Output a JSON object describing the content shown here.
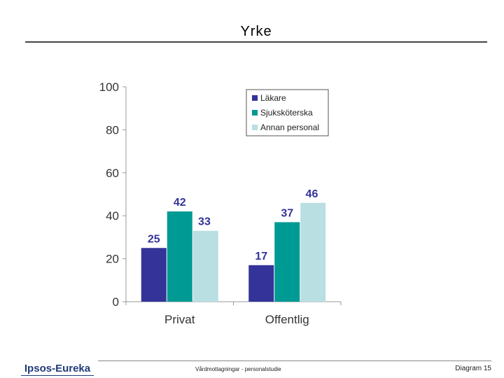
{
  "header": {
    "title": "Yrke"
  },
  "footer": {
    "logo": "Ipsos-Eureka",
    "center": "Vårdmottagningar - personalstudie",
    "right": "Diagram 15"
  },
  "colors": {
    "Läkare": "#333399",
    "Sjuksköterska": "#009a94",
    "Annan personal": "#b9dfe3"
  },
  "chart_data": {
    "type": "bar",
    "categories": [
      "Privat",
      "Offentlig"
    ],
    "series": [
      {
        "name": "Läkare",
        "values": [
          25,
          17
        ]
      },
      {
        "name": "Sjuksköterska",
        "values": [
          42,
          37
        ]
      },
      {
        "name": "Annan personal",
        "values": [
          33,
          46
        ]
      }
    ],
    "yticks": [
      "0",
      "20",
      "40",
      "60",
      "80",
      "100"
    ],
    "ylim": [
      0,
      100
    ],
    "grid": false,
    "legend": "top-right"
  }
}
